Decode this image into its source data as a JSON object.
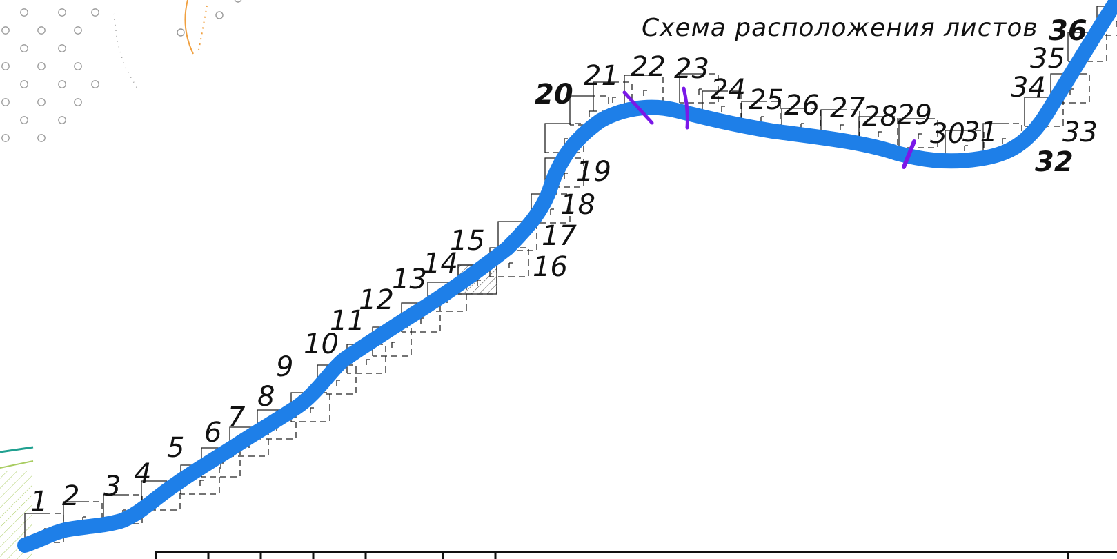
{
  "title": "Схема расположения листов",
  "sheet_labels": [
    "1",
    "2",
    "3",
    "4",
    "5",
    "6",
    "7",
    "8",
    "9",
    "10",
    "11",
    "12",
    "13",
    "14",
    "15",
    "16",
    "17",
    "18",
    "19",
    "20",
    "21",
    "22",
    "23",
    "24",
    "25",
    "26",
    "27",
    "28",
    "29",
    "30",
    "31",
    "32",
    "33",
    "34",
    "35",
    "36"
  ],
  "colors": {
    "route": "#1e7fe8",
    "route_marks": "#7a18e8",
    "lines": "#222222",
    "bg_dots": "#9a9a9a",
    "bg_orange": "#f0a040",
    "bg_teal": "#20a090",
    "bg_green": "#a8cc60"
  }
}
